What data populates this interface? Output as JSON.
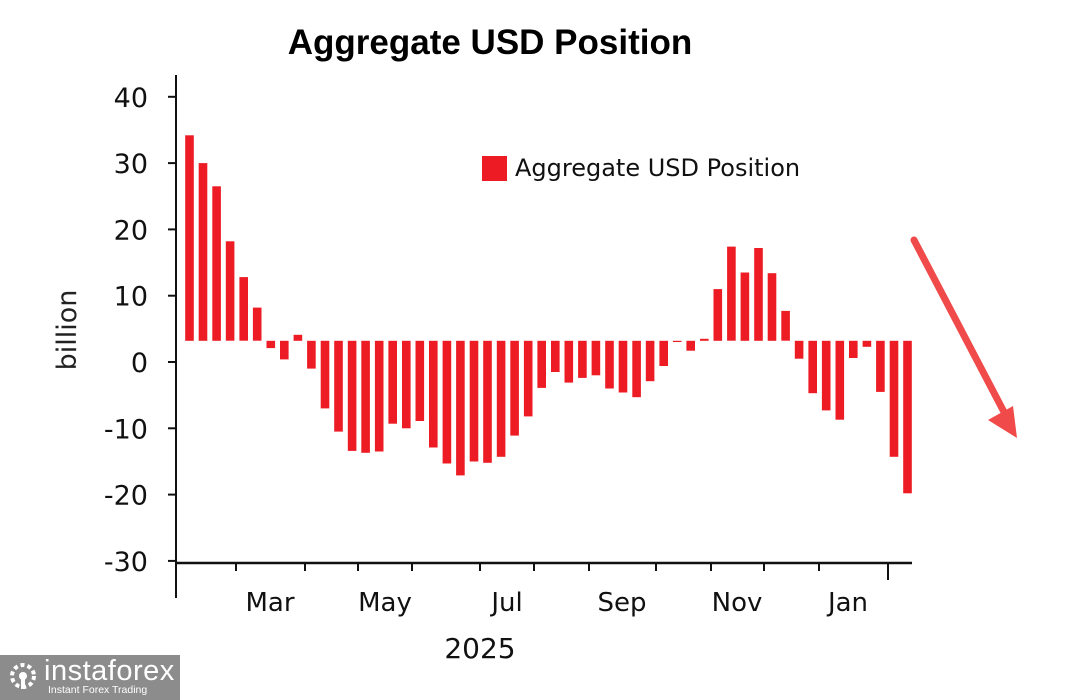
{
  "chart_data": {
    "type": "bar",
    "title": "Aggregate USD Position",
    "ylabel": "billion",
    "xlabel": "2025",
    "ylim": [
      -30,
      40
    ],
    "yticks": [
      40,
      30,
      20,
      10,
      0,
      -10,
      -20,
      -30
    ],
    "xtick_labels": [
      "Mar",
      "May",
      "Jul",
      "Sep",
      "Nov",
      "Jan"
    ],
    "bar_baseline": 3.2,
    "legend": {
      "label": "Aggregate USD Position",
      "placement": "top-right"
    },
    "series": [
      {
        "name": "Aggregate USD Position",
        "color": "#ed1c24",
        "values": [
          34.2,
          30.0,
          26.5,
          18.2,
          12.8,
          8.2,
          2.1,
          0.4,
          4.1,
          -1.0,
          -7.0,
          -10.5,
          -13.4,
          -13.7,
          -13.5,
          -9.3,
          -10.0,
          -8.9,
          -12.9,
          -15.3,
          -17.1,
          -15.0,
          -15.2,
          -14.3,
          -11.1,
          -8.2,
          -3.9,
          -1.5,
          -3.1,
          -2.4,
          -2.0,
          -4.0,
          -4.6,
          -5.3,
          -2.9,
          -0.6,
          3.2,
          1.7,
          3.5,
          11.0,
          17.4,
          13.5,
          17.2,
          13.4,
          7.7,
          0.5,
          -4.7,
          -7.3,
          -8.7,
          0.6,
          2.3,
          -4.5,
          -14.3,
          -19.8
        ]
      }
    ],
    "annotation": "downward-trend-arrow"
  },
  "watermark": {
    "brand": "instaforex",
    "tagline": "Instant Forex Trading"
  }
}
